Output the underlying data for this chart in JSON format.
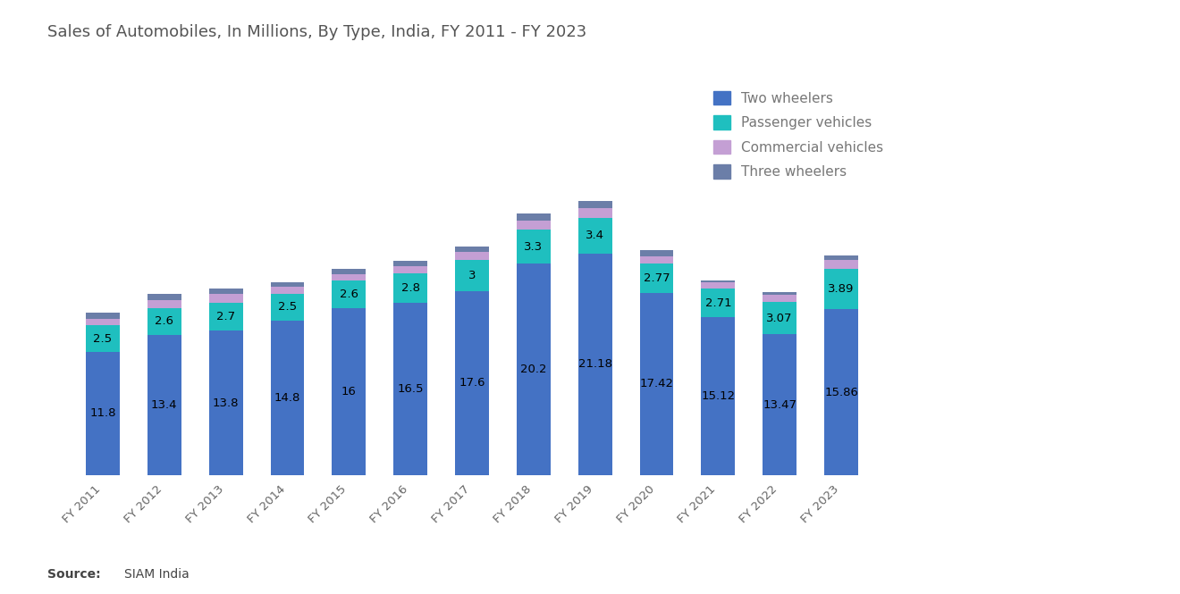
{
  "title": "Sales of Automobiles, In Millions, By Type, India, FY 2011 - FY 2023",
  "categories": [
    "FY 2011",
    "FY 2012",
    "FY 2013",
    "FY 2014",
    "FY 2015",
    "FY 2016",
    "FY 2017",
    "FY 2018",
    "FY 2019",
    "FY 2020",
    "FY 2021",
    "FY 2022",
    "FY 2023"
  ],
  "two_wheelers": [
    11.8,
    13.4,
    13.8,
    14.8,
    16.0,
    16.5,
    17.6,
    20.2,
    21.18,
    17.42,
    15.12,
    13.47,
    15.86
  ],
  "passenger_vehicles": [
    2.5,
    2.6,
    2.7,
    2.5,
    2.6,
    2.8,
    3.0,
    3.3,
    3.4,
    2.77,
    2.71,
    3.07,
    3.89
  ],
  "commercial_vehicles": [
    0.67,
    0.77,
    0.79,
    0.7,
    0.61,
    0.68,
    0.71,
    0.86,
    0.95,
    0.72,
    0.57,
    0.72,
    0.78
  ],
  "three_wheelers": [
    0.53,
    0.52,
    0.54,
    0.48,
    0.5,
    0.51,
    0.51,
    0.64,
    0.7,
    0.64,
    0.22,
    0.26,
    0.49
  ],
  "two_wheelers_color": "#4472C4",
  "passenger_vehicles_color": "#1FBFBF",
  "commercial_vehicles_color": "#C49FD4",
  "three_wheelers_color": "#6B7EA8",
  "background_color": "#FFFFFF",
  "source_bold": "Source:",
  "source_rest": "  SIAM India",
  "legend_labels": [
    "Two wheelers",
    "Passenger vehicles",
    "Commercial vehicles",
    "Three wheelers"
  ],
  "title_fontsize": 13,
  "label_fontsize": 9.5,
  "tick_fontsize": 9.5,
  "legend_fontsize": 11
}
